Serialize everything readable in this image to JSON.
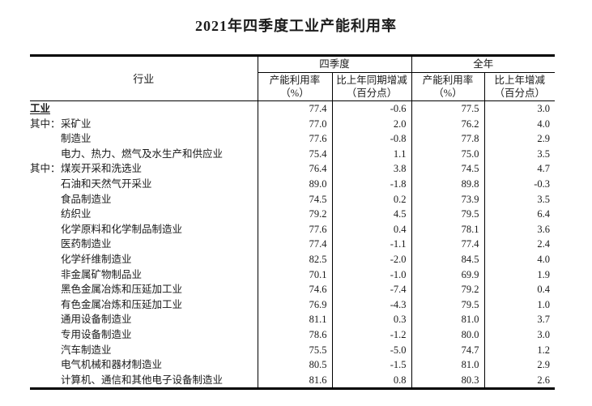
{
  "page": {
    "title": "2021年四季度工业产能利用率"
  },
  "table": {
    "industry_header": "行业",
    "groups": {
      "q4": "四季度",
      "year": "全年"
    },
    "subheaders": [
      {
        "line1": "产能利用率",
        "line2": "（%）"
      },
      {
        "line1": "比上年同期增减",
        "line2": "（百分点）"
      },
      {
        "line1": "产能利用率",
        "line2": "（%）"
      },
      {
        "line1": "比上年增减",
        "line2": "（百分点）"
      }
    ],
    "rows": [
      {
        "prefix": "",
        "flush": true,
        "bold": true,
        "label": "工业",
        "q4_rate": "77.4",
        "q4_change": "-0.6",
        "year_rate": "77.5",
        "year_change": "3.0"
      },
      {
        "prefix": "其中：",
        "flush": false,
        "bold": false,
        "label": "采矿业",
        "q4_rate": "77.0",
        "q4_change": "2.0",
        "year_rate": "76.2",
        "year_change": "4.0"
      },
      {
        "prefix": "",
        "flush": false,
        "bold": false,
        "label": "制造业",
        "q4_rate": "77.6",
        "q4_change": "-0.8",
        "year_rate": "77.8",
        "year_change": "2.9"
      },
      {
        "prefix": "",
        "flush": false,
        "bold": false,
        "label": "电力、热力、燃气及水生产和供应业",
        "q4_rate": "75.4",
        "q4_change": "1.1",
        "year_rate": "75.0",
        "year_change": "3.5"
      },
      {
        "prefix": "其中：",
        "flush": false,
        "bold": false,
        "label": "煤炭开采和洗选业",
        "q4_rate": "76.4",
        "q4_change": "3.8",
        "year_rate": "74.5",
        "year_change": "4.7"
      },
      {
        "prefix": "",
        "flush": false,
        "bold": false,
        "label": "石油和天然气开采业",
        "q4_rate": "89.0",
        "q4_change": "-1.8",
        "year_rate": "89.8",
        "year_change": "-0.3"
      },
      {
        "prefix": "",
        "flush": false,
        "bold": false,
        "label": "食品制造业",
        "q4_rate": "74.5",
        "q4_change": "0.2",
        "year_rate": "73.9",
        "year_change": "3.5"
      },
      {
        "prefix": "",
        "flush": false,
        "bold": false,
        "label": "纺织业",
        "q4_rate": "79.2",
        "q4_change": "4.5",
        "year_rate": "79.5",
        "year_change": "6.4"
      },
      {
        "prefix": "",
        "flush": false,
        "bold": false,
        "label": "化学原料和化学制品制造业",
        "q4_rate": "77.6",
        "q4_change": "0.4",
        "year_rate": "78.1",
        "year_change": "3.6"
      },
      {
        "prefix": "",
        "flush": false,
        "bold": false,
        "label": "医药制造业",
        "q4_rate": "77.4",
        "q4_change": "-1.1",
        "year_rate": "77.4",
        "year_change": "2.4"
      },
      {
        "prefix": "",
        "flush": false,
        "bold": false,
        "label": "化学纤维制造业",
        "q4_rate": "82.5",
        "q4_change": "-2.0",
        "year_rate": "84.5",
        "year_change": "4.0"
      },
      {
        "prefix": "",
        "flush": false,
        "bold": false,
        "label": "非金属矿物制品业",
        "q4_rate": "70.1",
        "q4_change": "-1.0",
        "year_rate": "69.9",
        "year_change": "1.9"
      },
      {
        "prefix": "",
        "flush": false,
        "bold": false,
        "label": "黑色金属冶炼和压延加工业",
        "q4_rate": "74.6",
        "q4_change": "-7.4",
        "year_rate": "79.2",
        "year_change": "0.4"
      },
      {
        "prefix": "",
        "flush": false,
        "bold": false,
        "label": "有色金属冶炼和压延加工业",
        "q4_rate": "76.9",
        "q4_change": "-4.3",
        "year_rate": "79.5",
        "year_change": "1.0"
      },
      {
        "prefix": "",
        "flush": false,
        "bold": false,
        "label": "通用设备制造业",
        "q4_rate": "81.1",
        "q4_change": "0.3",
        "year_rate": "81.0",
        "year_change": "3.7"
      },
      {
        "prefix": "",
        "flush": false,
        "bold": false,
        "label": "专用设备制造业",
        "q4_rate": "78.6",
        "q4_change": "-1.2",
        "year_rate": "80.0",
        "year_change": "3.0"
      },
      {
        "prefix": "",
        "flush": false,
        "bold": false,
        "label": "汽车制造业",
        "q4_rate": "75.5",
        "q4_change": "-5.0",
        "year_rate": "74.7",
        "year_change": "1.2"
      },
      {
        "prefix": "",
        "flush": false,
        "bold": false,
        "label": "电气机械和器材制造业",
        "q4_rate": "80.5",
        "q4_change": "-1.5",
        "year_rate": "81.0",
        "year_change": "2.9"
      },
      {
        "prefix": "",
        "flush": false,
        "bold": false,
        "label": "计算机、通信和其他电子设备制造业",
        "q4_rate": "81.6",
        "q4_change": "0.8",
        "year_rate": "80.3",
        "year_change": "2.6"
      }
    ]
  }
}
